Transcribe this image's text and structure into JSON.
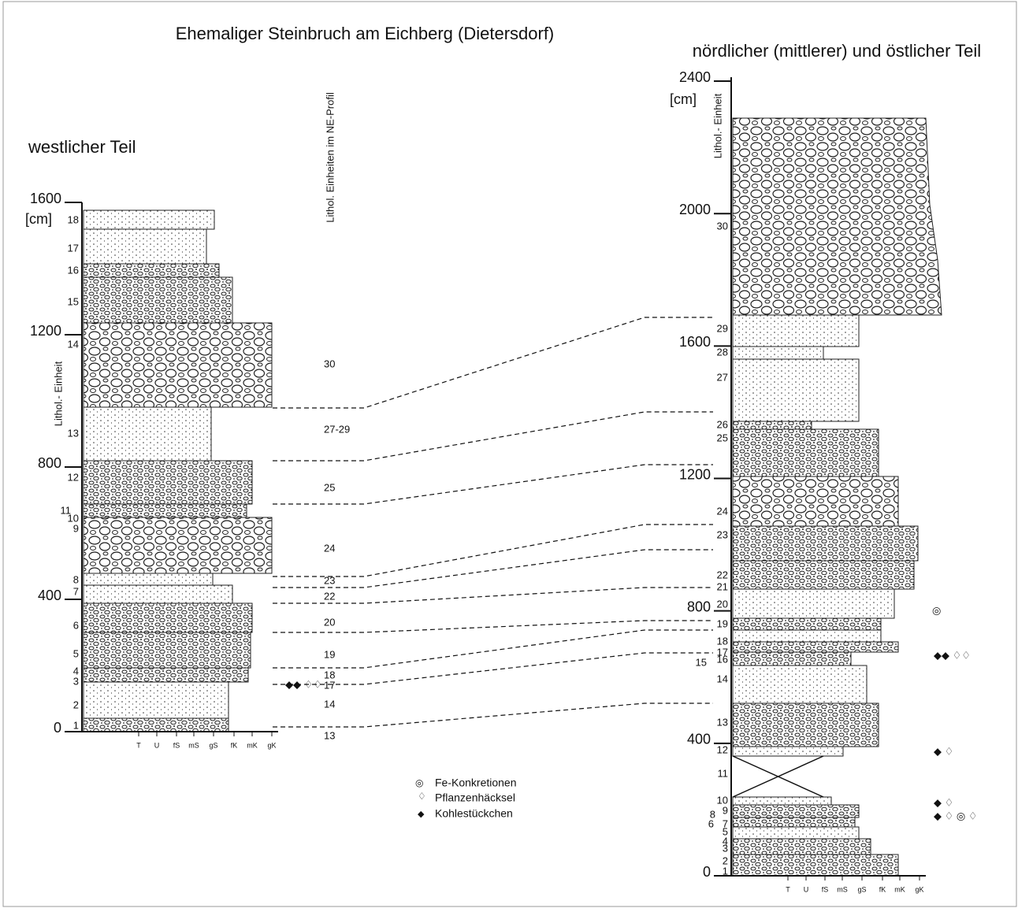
{
  "title": "Ehemaliger Steinbruch am Eichberg (Dietersdorf)",
  "west": {
    "heading": "westlicher Teil",
    "axis_title": "Lithol.- Einheit",
    "depth_unit": "[cm]",
    "depth_ticks": [
      0,
      400,
      800,
      1200,
      1600
    ],
    "units": [
      "1",
      "2",
      "3",
      "4",
      "5",
      "6",
      "7",
      "8",
      "9",
      "10",
      "11",
      "12",
      "13",
      "14",
      "15",
      "16",
      "17",
      "18"
    ]
  },
  "correlation": {
    "heading": "Lithol. Einheiten im NE-Profil",
    "labels": [
      "30",
      "27-29",
      "25",
      "24",
      "23",
      "22",
      "20",
      "19",
      "18",
      "17",
      "14",
      "13"
    ]
  },
  "east": {
    "heading": "nördlicher (mittlerer) und östlicher Teil",
    "axis_title": "Lithol.- Einheit",
    "depth_unit": "[cm]",
    "depth_ticks": [
      0,
      400,
      800,
      1200,
      1600,
      2000,
      2400
    ],
    "units": [
      "1",
      "2",
      "3",
      "4",
      "5",
      "6",
      "7",
      "8",
      "9",
      "10",
      "11",
      "12",
      "13",
      "14",
      "15",
      "16",
      "17",
      "18",
      "19",
      "20",
      "21",
      "22",
      "23",
      "24",
      "25",
      "26",
      "27",
      "28",
      "29",
      "30"
    ]
  },
  "grain_sizes": [
    "T",
    "U",
    "fS",
    "mS",
    "gS",
    "fK",
    "mK",
    "gK"
  ],
  "legend": [
    "Fe-Konkretionen",
    "Pflanzenhäcksel",
    "Kohlestückchen"
  ]
}
